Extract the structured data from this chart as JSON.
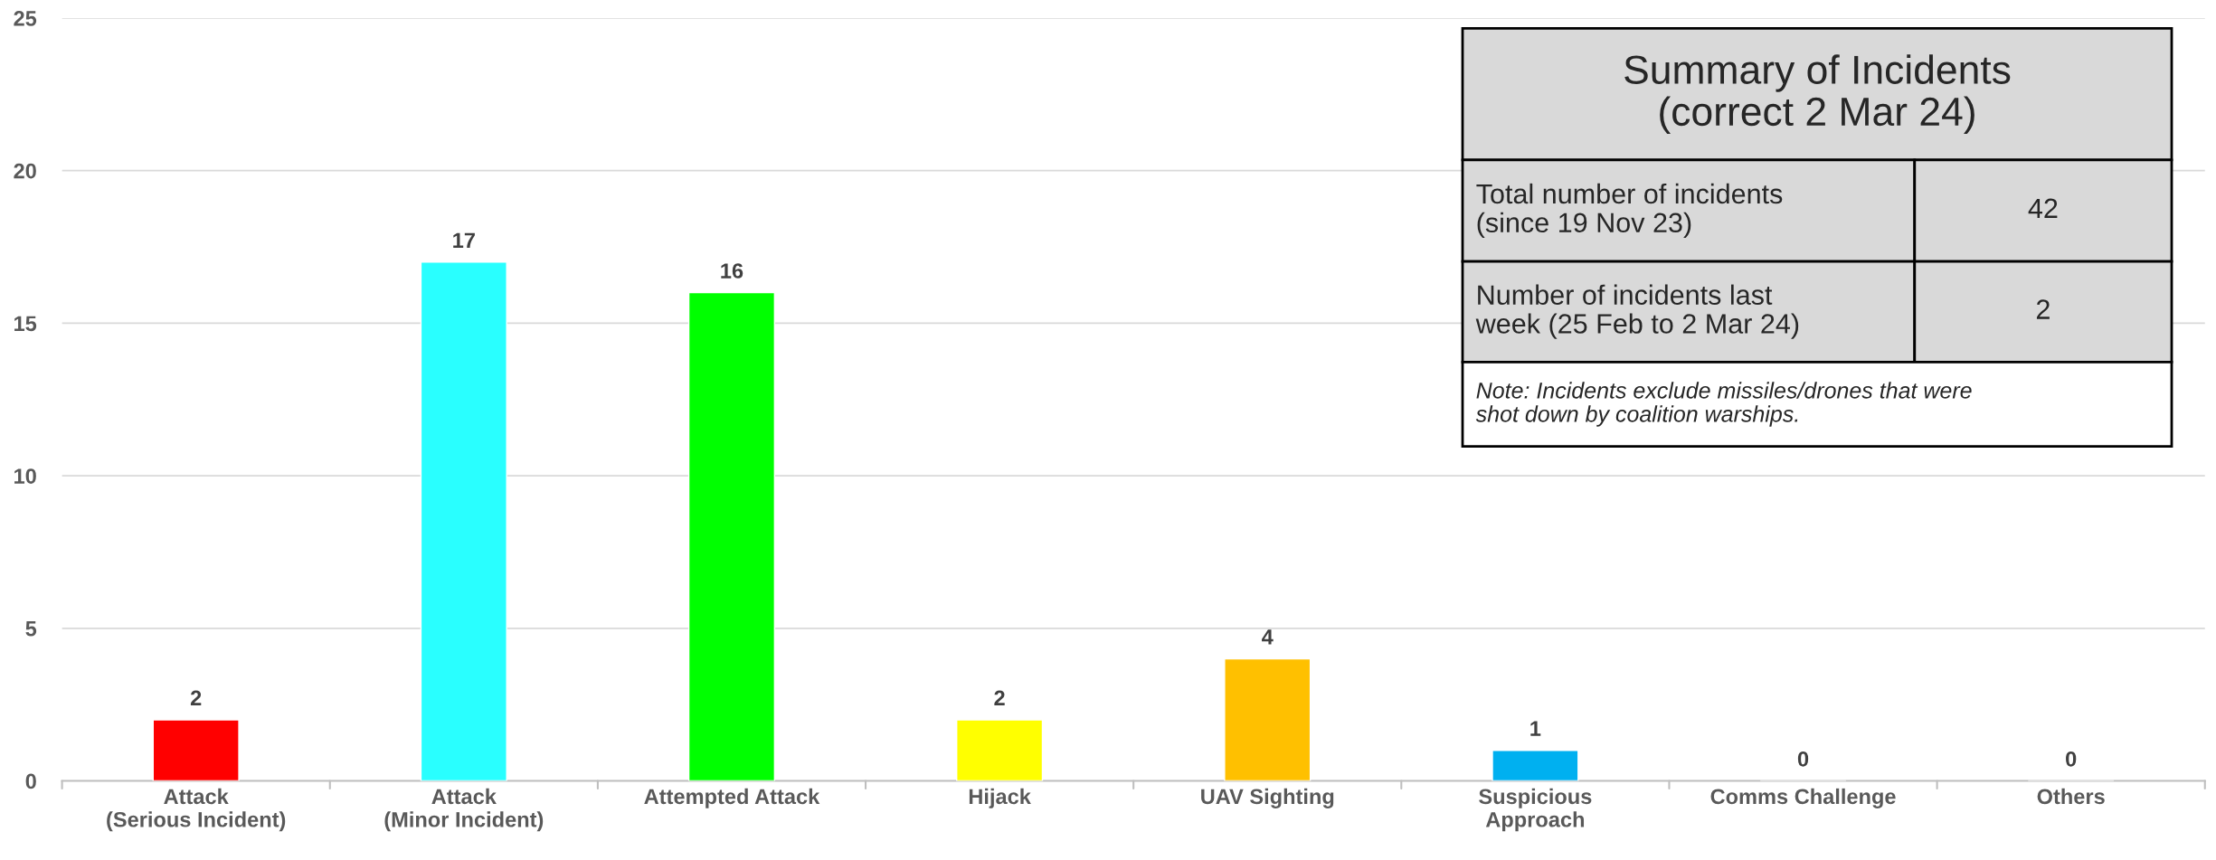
{
  "chart_data": {
    "type": "bar",
    "categories": [
      "Attack\n(Serious Incident)",
      "Attack\n(Minor Incident)",
      "Attempted Attack",
      "Hijack",
      "UAV Sighting",
      "Suspicious\nApproach",
      "Comms Challenge",
      "Others"
    ],
    "values": [
      2,
      17,
      16,
      2,
      4,
      1,
      0,
      0
    ],
    "colors": [
      "#ff0000",
      "#29ffff",
      "#00ff00",
      "#ffff00",
      "#ffc000",
      "#00b0f0",
      null,
      null
    ],
    "ylim": [
      0,
      25
    ],
    "yticks": [
      0,
      5,
      10,
      15,
      20,
      25
    ],
    "grid": "y",
    "data_labels": true,
    "annotations": [
      "Summary of Incidents\n(correct 2 Mar 24)",
      "Total number of incidents\n(since 19 Nov 23)",
      "42",
      "Number of incidents last\nweek (25 Feb to 2 Mar 24)",
      "2",
      "Note: Incidents exclude missiles/drones that were\nshot down by coalition warships."
    ]
  }
}
